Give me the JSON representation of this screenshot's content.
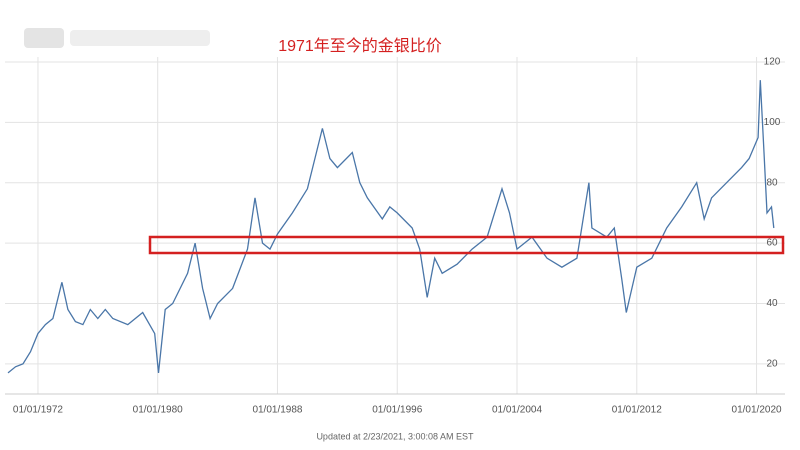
{
  "chart_data": {
    "type": "line",
    "title": "1971年至今的金银比价",
    "footer": "Updated at 2/23/2021, 3:00:08 AM EST",
    "x": [
      1970,
      1970.5,
      1971,
      1971.5,
      1972,
      1972.5,
      1973,
      1973.6,
      1974,
      1974.5,
      1975,
      1975.5,
      1976,
      1976.5,
      1977,
      1978,
      1979,
      1979.8,
      1980.05,
      1980.5,
      1981,
      1982,
      1982.5,
      1983,
      1983.5,
      1984,
      1985,
      1986,
      1986.5,
      1987,
      1987.5,
      1988,
      1989,
      1990,
      1991,
      1991.5,
      1992,
      1993,
      1993.5,
      1994,
      1995,
      1995.5,
      1996,
      1997,
      1997.5,
      1998,
      1998.5,
      1999,
      2000,
      2001,
      2002,
      2003,
      2003.5,
      2004,
      2005,
      2006,
      2007,
      2008,
      2008.8,
      2009,
      2010,
      2010.5,
      2011,
      2011.3,
      2012,
      2013,
      2014,
      2015,
      2016,
      2016.5,
      2017,
      2018,
      2019,
      2019.5,
      2020.1,
      2020.25,
      2020.5,
      2020.7,
      2021,
      2021.15
    ],
    "series": [
      {
        "color": "#4a76a8",
        "values": [
          17,
          19,
          20,
          24,
          30,
          33,
          35,
          47,
          38,
          34,
          33,
          38,
          35,
          38,
          35,
          33,
          37,
          30,
          17,
          38,
          40,
          50,
          60,
          45,
          35,
          40,
          45,
          58,
          75,
          60,
          58,
          63,
          70,
          78,
          98,
          88,
          85,
          90,
          80,
          75,
          68,
          72,
          70,
          65,
          58,
          42,
          55,
          50,
          53,
          58,
          62,
          78,
          70,
          58,
          62,
          55,
          52,
          55,
          80,
          65,
          62,
          65,
          48,
          37,
          52,
          55,
          65,
          72,
          80,
          68,
          75,
          80,
          85,
          88,
          95,
          114,
          90,
          70,
          72,
          65
        ]
      }
    ],
    "xlim": [
      1969.8,
      2021.9
    ],
    "xticks": [
      {
        "value": 1972,
        "label": "01/01/1972"
      },
      {
        "value": 1980,
        "label": "01/01/1980"
      },
      {
        "value": 1988,
        "label": "01/01/1988"
      },
      {
        "value": 1996,
        "label": "01/01/1996"
      },
      {
        "value": 2004,
        "label": "01/01/2004"
      },
      {
        "value": 2012,
        "label": "01/01/2012"
      },
      {
        "value": 2020,
        "label": "01/01/2020"
      }
    ],
    "ylim": [
      10,
      120
    ],
    "yticks": [
      20,
      40,
      60,
      80,
      100,
      120
    ],
    "grid": true
  }
}
